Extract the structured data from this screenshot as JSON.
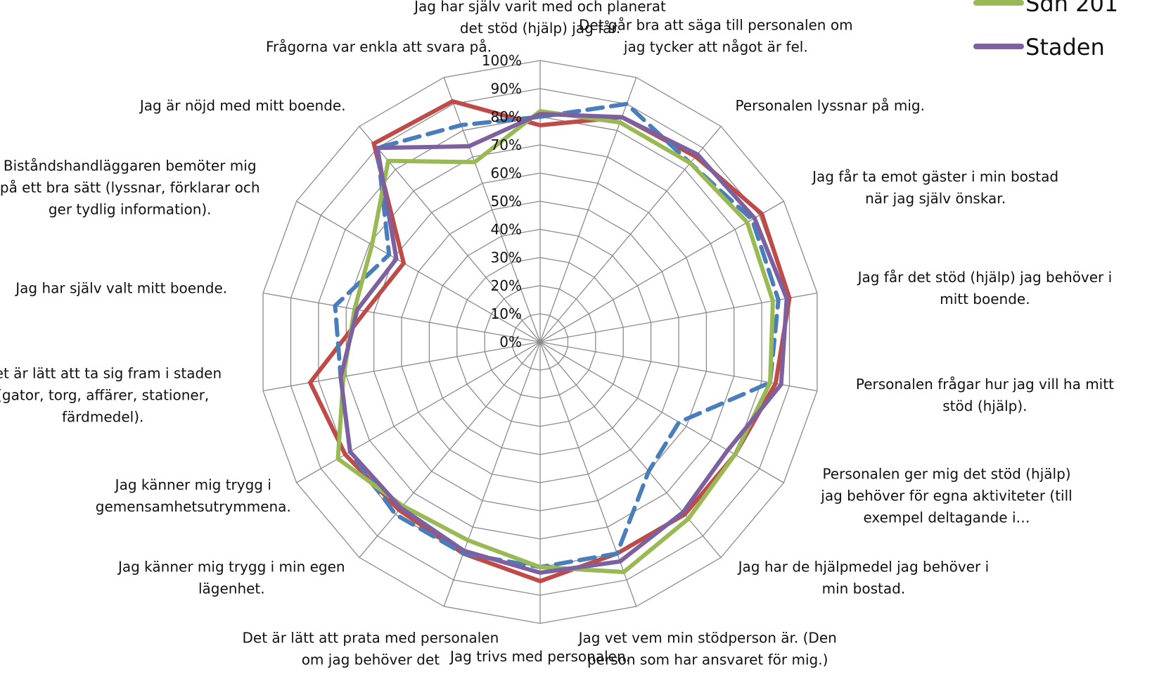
{
  "chart_data": {
    "type": "radar",
    "rlim": [
      0,
      100
    ],
    "ticks": [
      "0%",
      "10%",
      "20%",
      "30%",
      "40%",
      "50%",
      "60%",
      "70%",
      "80%",
      "90%",
      "100%"
    ],
    "categories": [
      [
        "Jag har själv varit med och planerat",
        "det stöd (hjälp) jag får."
      ],
      [
        "Det går bra att säga till personalen om",
        "jag tycker att något är fel."
      ],
      [
        "Personalen lyssnar på mig."
      ],
      [
        "Jag får ta emot gäster i min bostad",
        "när jag själv önskar."
      ],
      [
        "Jag får det stöd (hjälp) jag behöver i",
        "mitt boende."
      ],
      [
        "Personalen frågar hur jag vill ha mitt",
        "stöd (hjälp)."
      ],
      [
        "Personalen ger mig det stöd (hjälp)",
        "jag behöver för egna aktiviteter (till",
        "exempel deltagande i…"
      ],
      [
        "Jag har de hjälpmedel jag behöver i",
        "min bostad."
      ],
      [
        "Jag vet vem min stödperson är. (Den",
        "person som har ansvaret för mig.)"
      ],
      [
        "Jag trivs med personalen."
      ],
      [
        "Det är lätt att prata med personalen",
        "om jag behöver det"
      ],
      [
        "Jag känner mig trygg i min egen",
        "lägenhet."
      ],
      [
        "Jag känner mig trygg i",
        "gemensamhetsutrymmena."
      ],
      [
        "Det är lätt att ta sig fram i staden",
        "(gator, torg, affärer, stationer,",
        "färdmedel)."
      ],
      [
        "Jag har själv valt mitt boende."
      ],
      [
        "Biståndshandläggaren bemöter mig",
        "på ett bra sätt (lyssnar, förklarar och",
        "ger tydlig information)."
      ],
      [
        "Jag är nöjd med mitt boende."
      ],
      [
        "Frågorna var enkla att svara på."
      ]
    ],
    "series": [
      {
        "name": "",
        "color": "#be4b48",
        "dash": false,
        "values": [
          77,
          85,
          86,
          91,
          90,
          85,
          80,
          80,
          80,
          85,
          80,
          78,
          80,
          83,
          63,
          56,
          92,
          91
        ]
      },
      {
        "name": "",
        "color": "#4a7ebb",
        "dash": true,
        "values": [
          80,
          90,
          83,
          87,
          86,
          83,
          57,
          60,
          80,
          80,
          80,
          80,
          78,
          72,
          74,
          62,
          90,
          82
        ]
      },
      {
        "name": "Sdn 201",
        "color": "#98b954",
        "dash": false,
        "values": [
          82,
          83,
          83,
          85,
          84,
          83,
          80,
          82,
          87,
          80,
          75,
          76,
          83,
          71,
          67,
          69,
          84,
          68
        ]
      },
      {
        "name": "Staden",
        "color": "#7d60a0",
        "dash": false,
        "values": [
          81,
          85,
          87,
          88,
          89,
          87,
          77,
          79,
          83,
          82,
          79,
          77,
          78,
          72,
          66,
          59,
          90,
          74
        ]
      }
    ],
    "legend_position": "top-right"
  }
}
